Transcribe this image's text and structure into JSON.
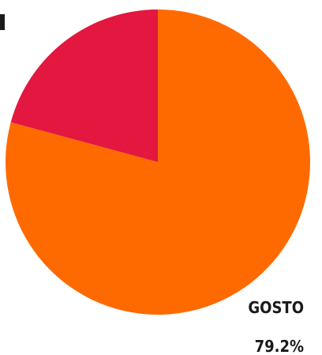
{
  "chart_data": {
    "type": "pie",
    "title": "",
    "start_angle_deg": 0,
    "direction": "clockwise",
    "slices": [
      {
        "label": "GOSTO",
        "value": 79.2,
        "value_label": "79.2%",
        "color": "#ff6a00",
        "show_label": true
      },
      {
        "label": "",
        "value": 20.8,
        "value_label": "",
        "color": "#e3173f",
        "show_label": false
      }
    ],
    "legend": "none"
  }
}
